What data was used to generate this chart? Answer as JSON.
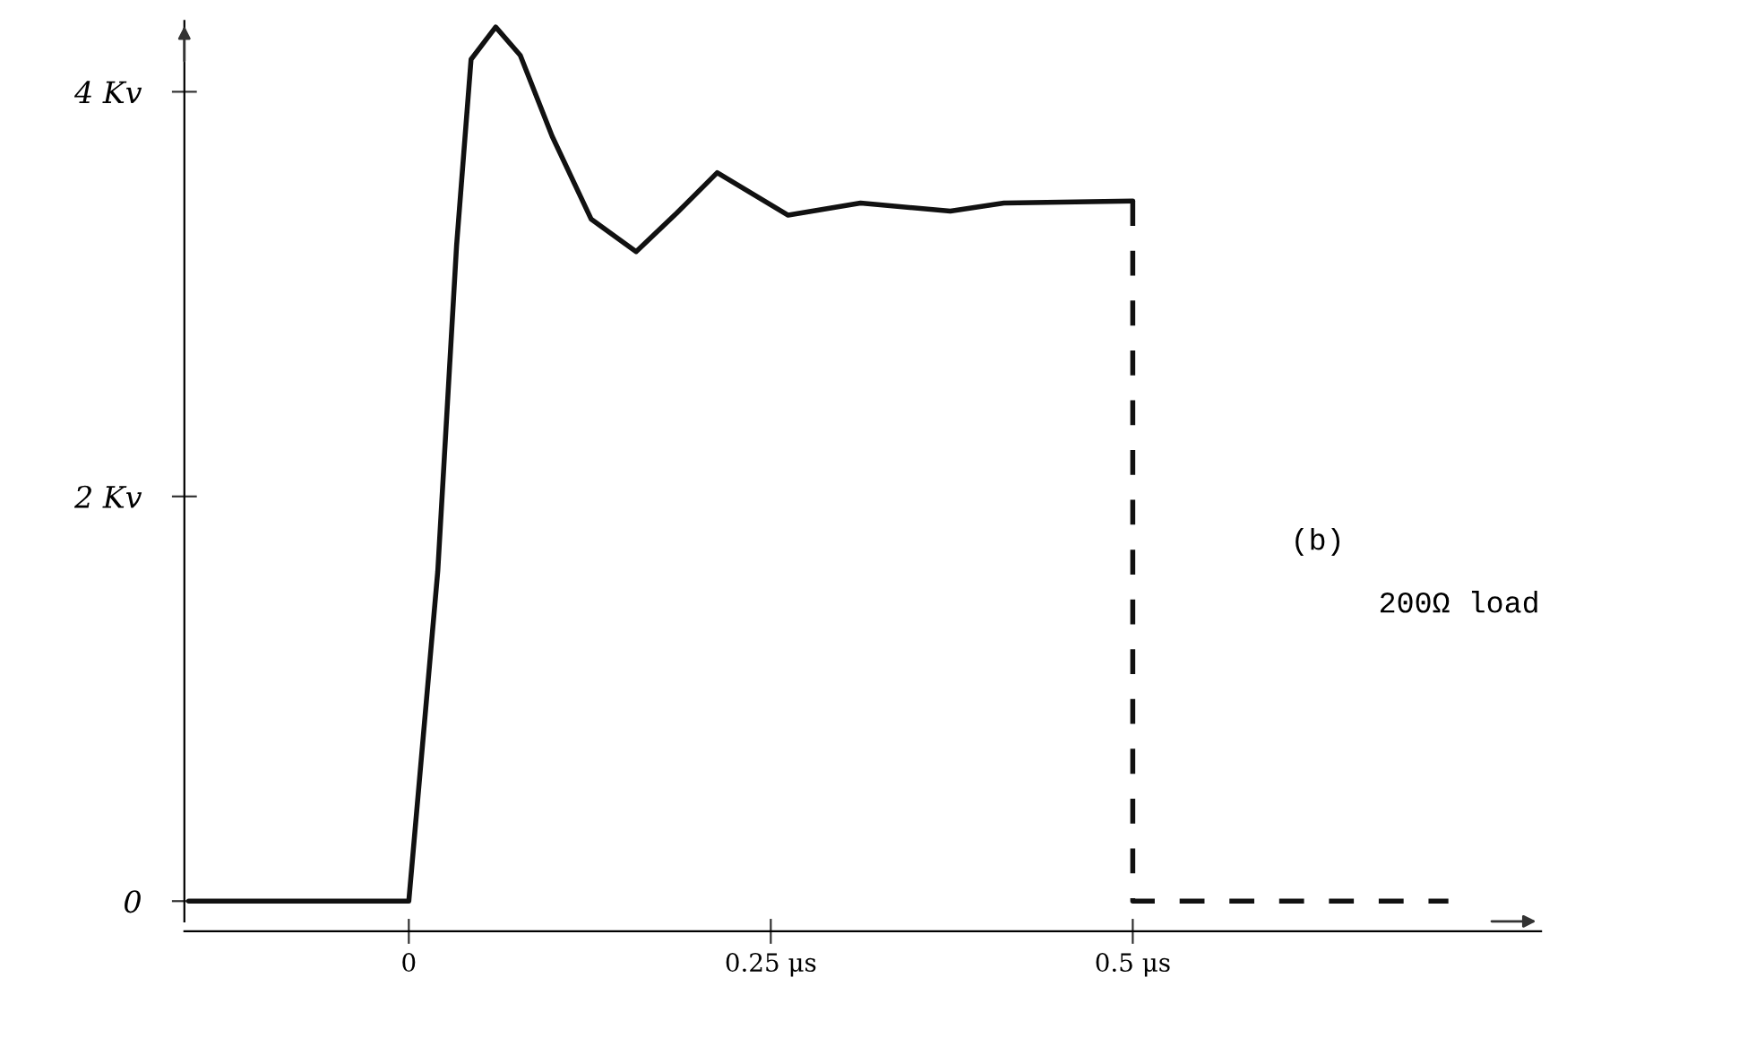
{
  "chart_data": {
    "type": "line",
    "series": [
      {
        "color": "#111111",
        "line_style": "solid",
        "x": [
          -0.152,
          0,
          0.02,
          0.033,
          0.043,
          0.06,
          0.077,
          0.099,
          0.126,
          0.157,
          0.185,
          0.213,
          0.262,
          0.312,
          0.374,
          0.411,
          0.5
        ],
        "values": [
          0,
          0,
          1.63,
          3.24,
          4.16,
          4.32,
          4.18,
          3.78,
          3.37,
          3.21,
          3.4,
          3.6,
          3.39,
          3.45,
          3.41,
          3.45,
          3.46
        ]
      },
      {
        "color": "#111111",
        "line_style": "dashed",
        "x": [
          0.5,
          0.5,
          0.718
        ],
        "values": [
          3.46,
          0,
          0
        ]
      }
    ],
    "xlim": [
      -0.155,
      0.782
    ],
    "ylim": [
      -0.1,
      4.35
    ],
    "xticks": [
      0,
      {
        "value": 0.25,
        "label": "0.25 μs"
      },
      {
        "value": 0.5,
        "label": "0.5 μs"
      }
    ],
    "yticks": [
      0,
      {
        "value": 2,
        "label": "2 Kv"
      },
      {
        "value": 4,
        "label": "4 Kv"
      }
    ],
    "annotations": [
      "(b)",
      "200Ω load"
    ]
  }
}
